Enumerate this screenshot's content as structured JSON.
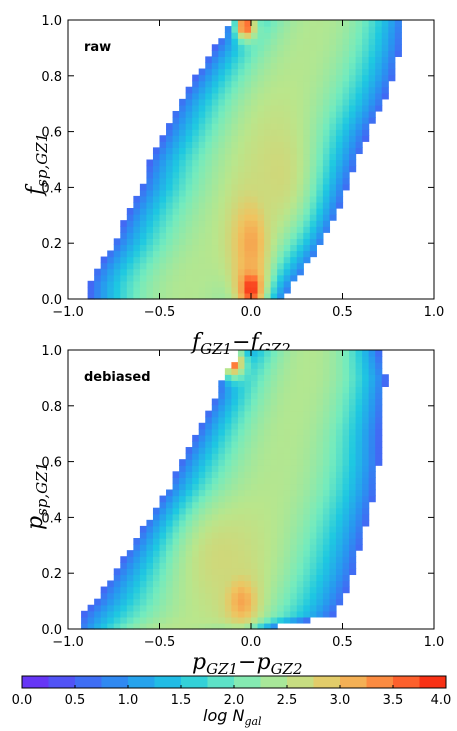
{
  "chart_data": [
    {
      "type": "heatmap",
      "panel_label": "raw",
      "xlabel": {
        "main": "f",
        "sub1": "GZ1",
        "op": "−",
        "main2": "f",
        "sub2": "GZ2"
      },
      "ylabel": {
        "main": "f",
        "sub": "sp,GZ1"
      },
      "xlim": [
        -1.0,
        1.0
      ],
      "ylim": [
        0.0,
        1.0
      ],
      "x_ticks": [
        "−1.0",
        "−0.5",
        "0.0",
        "0.5",
        "1.0"
      ],
      "y_ticks": [
        "0.0",
        "0.2",
        "0.4",
        "0.6",
        "0.8",
        "1.0"
      ],
      "band": {
        "y": [
          0.0,
          0.05,
          0.1,
          0.2,
          0.3,
          0.4,
          0.5,
          0.6,
          0.7,
          0.8,
          0.9,
          1.0
        ],
        "x_left": [
          -0.88,
          -0.88,
          -0.85,
          -0.75,
          -0.68,
          -0.6,
          -0.55,
          -0.47,
          -0.4,
          -0.3,
          -0.2,
          -0.1
        ],
        "x_right": [
          0.18,
          0.22,
          0.28,
          0.38,
          0.46,
          0.52,
          0.58,
          0.64,
          0.72,
          0.78,
          0.82,
          0.84
        ]
      },
      "hotspots": [
        {
          "x": 0.0,
          "y": 0.04,
          "value": 3.9,
          "sx": 0.08,
          "sy": 0.09
        },
        {
          "x": 0.0,
          "y": 0.2,
          "value": 3.2,
          "sx": 0.12,
          "sy": 0.18
        },
        {
          "x": -0.03,
          "y": 0.98,
          "value": 3.7,
          "sx": 0.06,
          "sy": 0.05
        },
        {
          "x": 0.15,
          "y": 0.45,
          "value": 2.7,
          "sx": 0.2,
          "sy": 0.25
        }
      ]
    },
    {
      "type": "heatmap",
      "panel_label": "debiased",
      "xlabel": {
        "main": "p",
        "sub1": "GZ1",
        "op": "−",
        "main2": "p",
        "sub2": "GZ2"
      },
      "ylabel": {
        "main": "p",
        "sub": "sp,GZ1"
      },
      "xlim": [
        -1.0,
        1.0
      ],
      "ylim": [
        0.0,
        1.0
      ],
      "x_ticks": [
        "−1.0",
        "−0.5",
        "0.0",
        "0.5",
        "1.0"
      ],
      "y_ticks": [
        "0.0",
        "0.2",
        "0.4",
        "0.6",
        "0.8",
        "1.0"
      ],
      "band": {
        "y": [
          0.0,
          0.05,
          0.1,
          0.2,
          0.3,
          0.4,
          0.5,
          0.6,
          0.7,
          0.8,
          0.9,
          1.0
        ],
        "x_left": [
          -0.95,
          -0.92,
          -0.85,
          -0.75,
          -0.65,
          -0.55,
          -0.45,
          -0.38,
          -0.3,
          -0.22,
          -0.15,
          -0.05
        ],
        "x_right": [
          0.08,
          0.45,
          0.5,
          0.56,
          0.6,
          0.64,
          0.68,
          0.7,
          0.7,
          0.72,
          0.74,
          0.7
        ]
      },
      "hotspots": [
        {
          "x": -0.05,
          "y": 0.1,
          "value": 3.2,
          "sx": 0.1,
          "sy": 0.1
        },
        {
          "x": -0.1,
          "y": 0.96,
          "value": 3.7,
          "sx": 0.07,
          "sy": 0.06
        },
        {
          "x": -0.15,
          "y": 0.25,
          "value": 2.7,
          "sx": 0.25,
          "sy": 0.2
        }
      ]
    }
  ],
  "colorbar": {
    "min": 0.0,
    "max": 4.0,
    "ticks": [
      "0.0",
      "0.5",
      "1.0",
      "1.5",
      "2.0",
      "2.5",
      "3.0",
      "3.5",
      "4.0"
    ],
    "label": {
      "main": "log N",
      "sub": "gal"
    }
  }
}
